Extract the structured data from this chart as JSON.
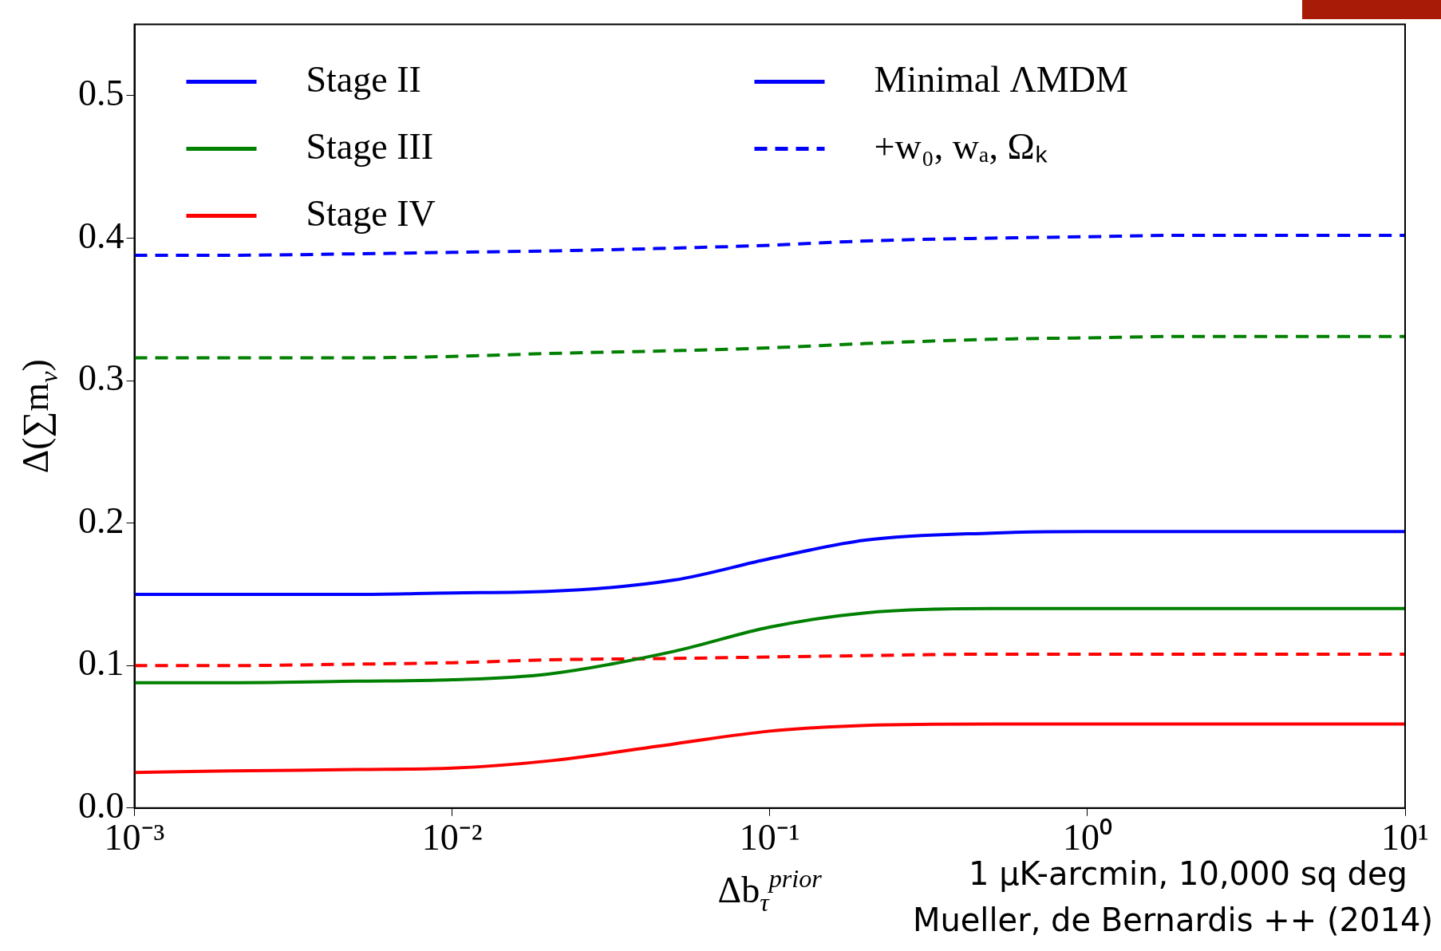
{
  "chart_data": {
    "type": "line",
    "xlabel": "Δb$_{τ}$$^{prior}$",
    "ylabel": "Δ(∑m$_{ν}$)",
    "x": [
      0.001,
      0.002,
      0.005,
      0.01,
      0.02,
      0.05,
      0.1,
      0.2,
      0.5,
      1,
      2,
      5,
      10
    ],
    "series": [
      {
        "name": "Stage II",
        "color": "#0000ff",
        "line_style": "solid",
        "values": [
          0.15,
          0.15,
          0.15,
          0.151,
          0.152,
          0.16,
          0.175,
          0.188,
          0.193,
          0.194,
          0.194,
          0.194,
          0.194
        ]
      },
      {
        "name": "Stage III",
        "color": "#008000",
        "line_style": "solid",
        "values": [
          0.088,
          0.088,
          0.089,
          0.09,
          0.094,
          0.11,
          0.127,
          0.137,
          0.14,
          0.14,
          0.14,
          0.14,
          0.14
        ]
      },
      {
        "name": "Stage IV",
        "color": "#ff0000",
        "line_style": "solid",
        "values": [
          0.025,
          0.026,
          0.027,
          0.028,
          0.033,
          0.045,
          0.054,
          0.058,
          0.059,
          0.059,
          0.059,
          0.059,
          0.059
        ]
      },
      {
        "name": "+w₀, wₐ, Ωₖ",
        "color": "#0000ff",
        "line_style": "dashed",
        "values": [
          0.388,
          0.388,
          0.389,
          0.39,
          0.391,
          0.393,
          0.395,
          0.398,
          0.4,
          0.401,
          0.402,
          0.402,
          0.402
        ]
      },
      {
        "color": "#008000",
        "line_style": "dashed",
        "values": [
          0.316,
          0.316,
          0.316,
          0.317,
          0.319,
          0.321,
          0.323,
          0.326,
          0.329,
          0.33,
          0.331,
          0.331,
          0.331
        ]
      },
      {
        "color": "#ff0000",
        "line_style": "dashed",
        "values": [
          0.1,
          0.1,
          0.101,
          0.102,
          0.104,
          0.105,
          0.106,
          0.107,
          0.108,
          0.108,
          0.108,
          0.108,
          0.108
        ]
      }
    ],
    "annotations": [
      "Minimal ΛMDM",
      "1 μK-arcmin, 10,000 sq deg",
      "Mueller, de Bernardis ++ (2014)"
    ],
    "log": "x",
    "xlim": [
      0.001,
      10
    ],
    "xticks": [
      {
        "value": 0.001,
        "label": "10⁻³"
      },
      {
        "value": 0.01,
        "label": "10⁻²"
      },
      {
        "value": 0.1,
        "label": "10⁻¹"
      },
      {
        "value": 1,
        "label": "10⁰"
      },
      {
        "value": 10,
        "label": "10¹"
      }
    ],
    "ylim": [
      0,
      0.55
    ],
    "yticks": [
      {
        "value": 0,
        "label": "0.0"
      },
      {
        "value": 0.1,
        "label": "0.1"
      },
      {
        "value": 0.2,
        "label": "0.2"
      },
      {
        "value": 0.3,
        "label": "0.3"
      },
      {
        "value": 0.4,
        "label": "0.4"
      },
      {
        "value": 0.5,
        "label": "0.5"
      }
    ],
    "legend": "top left",
    "grid": false,
    "marker": "none"
  }
}
